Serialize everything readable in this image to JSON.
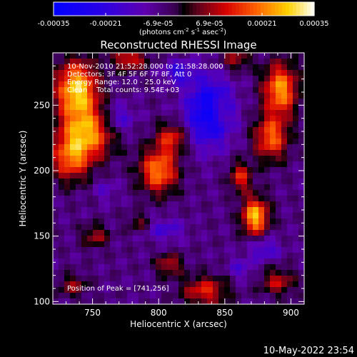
{
  "chart_data": {
    "type": "heatmap",
    "title": "Reconstructed RHESSI Image",
    "xlabel": "Heliocentric X (arcsec)",
    "ylabel": "Heliocentric Y (arcsec)",
    "xlim": [
      720,
      910
    ],
    "ylim": [
      98,
      290
    ],
    "xticks": [
      "750",
      "800",
      "850",
      "900"
    ],
    "xtick_values": [
      750,
      800,
      850,
      900
    ],
    "yticks": [
      "100",
      "150",
      "200",
      "250"
    ],
    "ytick_values": [
      100,
      150,
      200,
      250
    ],
    "colorbar": {
      "ticks": [
        "-0.00035",
        "-0.00021",
        "-6.9e-05",
        "6.9e-05",
        "0.00021",
        "0.00035"
      ],
      "tick_values": [
        -0.00035,
        -0.00021,
        -6.9e-05,
        6.9e-05,
        0.00021,
        0.00035
      ],
      "range": [
        -0.00035,
        0.00035
      ],
      "units_main": "(photons cm",
      "units_exp1": "-2",
      "units_mid": " s",
      "units_exp2": "-1",
      "units_tail": " asec",
      "units_exp3": "-2",
      "units_close": ")"
    },
    "annotations": [
      "10-Nov-2010 21:52:28.000 to 21:58:28.000",
      "Detectors: 3F 4F 5F 6F 7F 8F, Att 0",
      "Energy Range: 12.0 - 25.0 keV",
      "Clean    Total counts: 9.54E+03"
    ],
    "peak_label": "Position of Peak = [741,256]",
    "peak": [
      741,
      256
    ],
    "colors": {
      "background": "#000000",
      "frame": "#ffffff"
    },
    "sources": [
      {
        "x": 738,
        "y": 262,
        "amp": 1.0,
        "sx": 11,
        "sy": 15
      },
      {
        "x": 745,
        "y": 228,
        "amp": 0.85,
        "sx": 14,
        "sy": 14
      },
      {
        "x": 733,
        "y": 208,
        "amp": 0.6,
        "sx": 10,
        "sy": 12
      },
      {
        "x": 800,
        "y": 200,
        "amp": 0.8,
        "sx": 10,
        "sy": 12
      },
      {
        "x": 810,
        "y": 225,
        "amp": 0.55,
        "sx": 8,
        "sy": 8
      },
      {
        "x": 873,
        "y": 165,
        "amp": 0.95,
        "sx": 7,
        "sy": 10
      },
      {
        "x": 892,
        "y": 262,
        "amp": 0.85,
        "sx": 9,
        "sy": 14
      },
      {
        "x": 885,
        "y": 225,
        "amp": 0.7,
        "sx": 9,
        "sy": 12
      },
      {
        "x": 862,
        "y": 195,
        "amp": 0.55,
        "sx": 6,
        "sy": 8
      },
      {
        "x": 778,
        "y": 285,
        "amp": 0.55,
        "sx": 9,
        "sy": 6
      },
      {
        "x": 858,
        "y": 285,
        "amp": 0.4,
        "sx": 8,
        "sy": 6
      },
      {
        "x": 835,
        "y": 108,
        "amp": 0.55,
        "sx": 12,
        "sy": 8
      },
      {
        "x": 808,
        "y": 128,
        "amp": 0.45,
        "sx": 7,
        "sy": 6
      },
      {
        "x": 890,
        "y": 115,
        "amp": 0.45,
        "sx": 9,
        "sy": 7
      },
      {
        "x": 752,
        "y": 150,
        "amp": 0.4,
        "sx": 7,
        "sy": 6
      },
      {
        "x": 735,
        "y": 112,
        "amp": 0.35,
        "sx": 8,
        "sy": 6
      },
      {
        "x": 785,
        "y": 160,
        "amp": 0.3,
        "sx": 6,
        "sy": 5
      },
      {
        "x": 845,
        "y": 245,
        "amp": 0.3,
        "sx": 5,
        "sy": 6
      },
      {
        "x": 838,
        "y": 245,
        "amp": -0.75,
        "sx": 12,
        "sy": 18
      },
      {
        "x": 815,
        "y": 275,
        "amp": -0.4,
        "sx": 8,
        "sy": 6
      },
      {
        "x": 770,
        "y": 240,
        "amp": -0.35,
        "sx": 8,
        "sy": 8
      },
      {
        "x": 880,
        "y": 140,
        "amp": -0.35,
        "sx": 8,
        "sy": 6
      },
      {
        "x": 805,
        "y": 155,
        "amp": -0.3,
        "sx": 10,
        "sy": 6
      },
      {
        "x": 862,
        "y": 125,
        "amp": -0.25,
        "sx": 7,
        "sy": 6
      },
      {
        "x": 760,
        "y": 185,
        "amp": -0.2,
        "sx": 6,
        "sy": 6
      }
    ]
  },
  "footer": {
    "timestamp": "10-May-2022 23:54"
  }
}
